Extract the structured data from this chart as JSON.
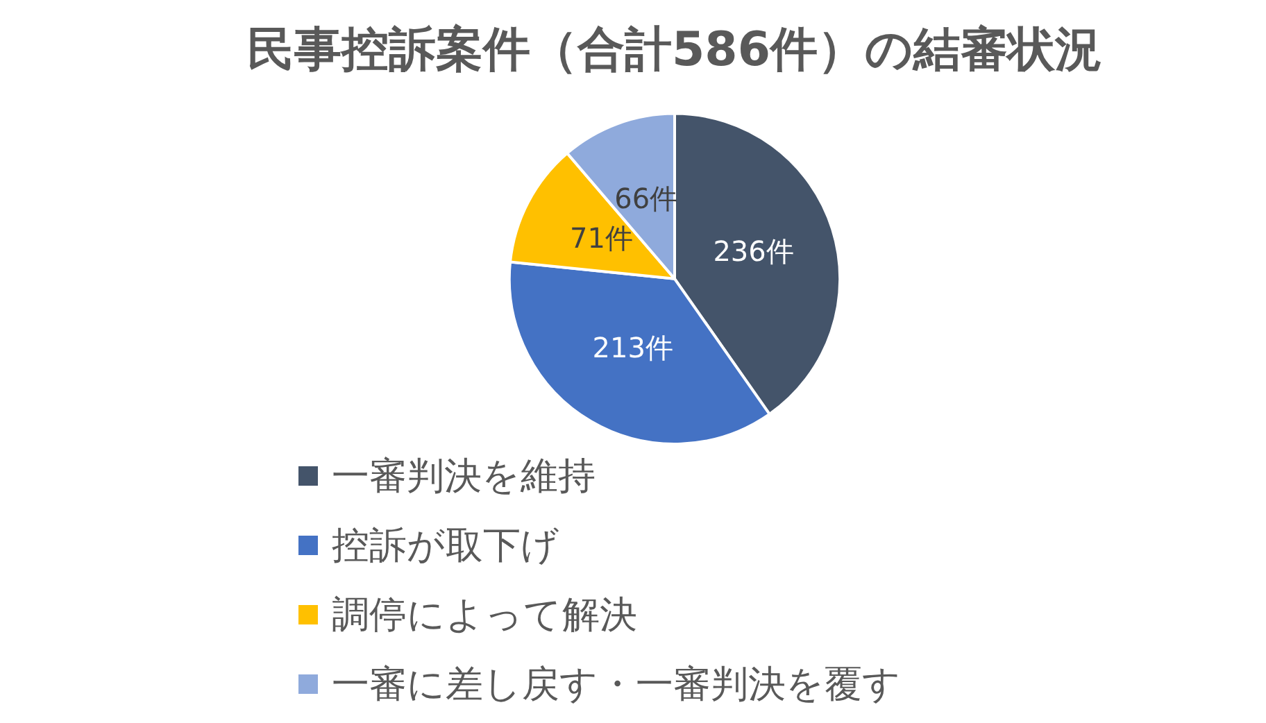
{
  "chart_data": {
    "type": "pie",
    "title": "民事控訴案件（合計586件）の結審状況",
    "categories": [
      "一審判決を維持",
      "控訴が取下げ",
      "調停によって解決",
      "一審に差し戻す・一審判決を覆す"
    ],
    "values": [
      236,
      213,
      71,
      66
    ],
    "colors": [
      "#44546a",
      "#4472c4",
      "#ffc000",
      "#8faadc"
    ],
    "value_labels": [
      "236件",
      "213件",
      "71件",
      "66件"
    ],
    "legend": "bottom"
  }
}
